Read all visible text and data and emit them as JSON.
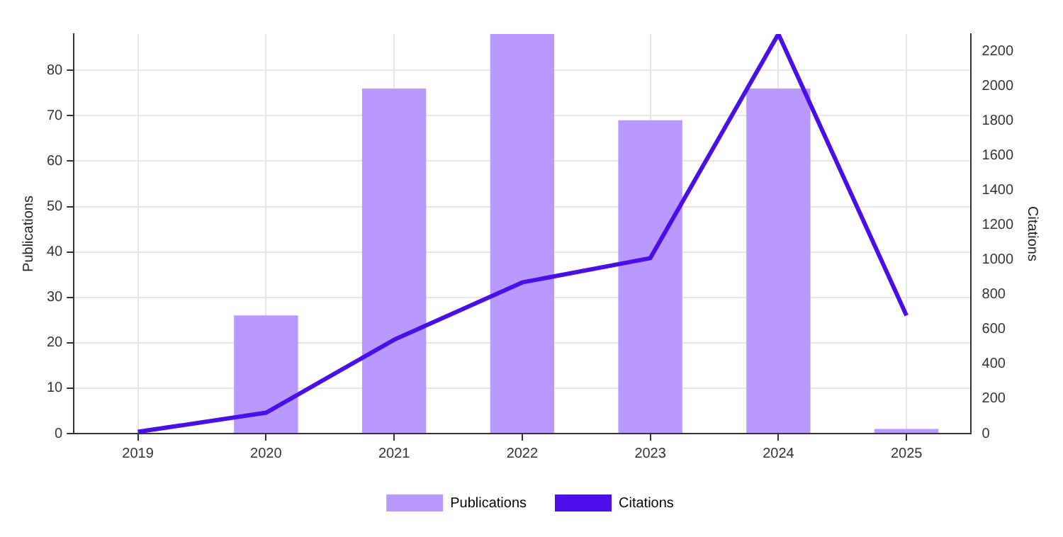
{
  "chart_data": {
    "type": "bar",
    "categories": [
      "2019",
      "2020",
      "2021",
      "2022",
      "2023",
      "2024",
      "2025"
    ],
    "series": [
      {
        "name": "Publications",
        "color": "#b799ff",
        "values": [
          0,
          26,
          76,
          88,
          69,
          76,
          1
        ]
      },
      {
        "name": "Citations",
        "type": "line",
        "axis": "y2",
        "color": "#4a0fe8",
        "values": [
          10,
          120,
          540,
          870,
          1010,
          2300,
          680
        ]
      }
    ],
    "ylabel": "Publications",
    "y2label": "Citations",
    "ylim": [
      0,
      88
    ],
    "yticks": [
      0,
      10,
      20,
      30,
      40,
      50,
      60,
      70,
      80
    ],
    "y2lim": [
      0,
      2300
    ],
    "y2ticks": [
      0,
      200,
      400,
      600,
      800,
      1000,
      1200,
      1400,
      1600,
      1800,
      2000,
      2200
    ],
    "grid": true,
    "legend": "bottom",
    "marker": "none",
    "line_style": "solid"
  }
}
